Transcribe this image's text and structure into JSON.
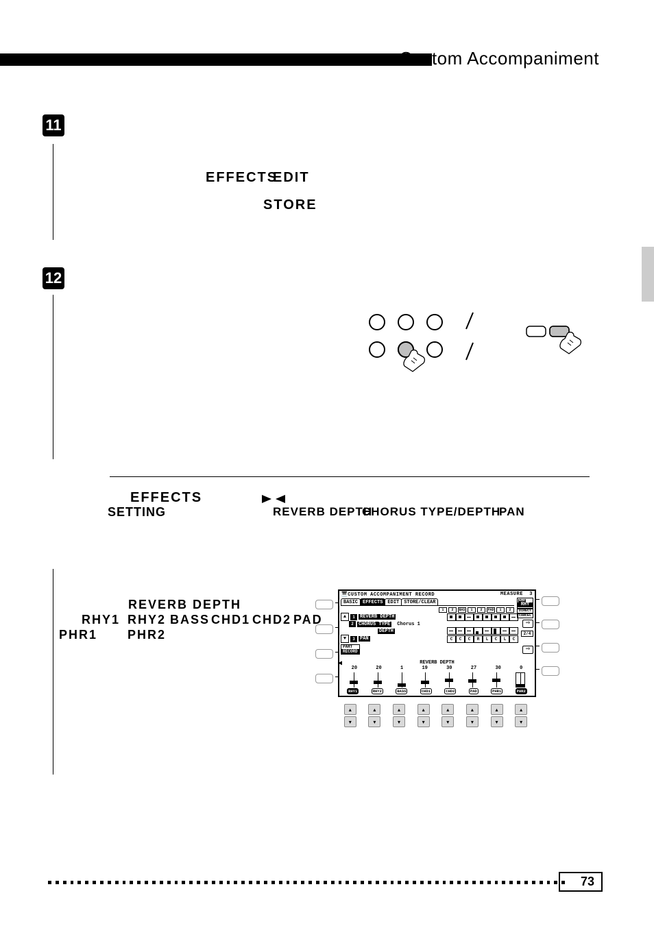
{
  "page": {
    "title": "Custom Accompaniment",
    "number": "73"
  },
  "steps": {
    "s11": "11",
    "s12": "12"
  },
  "words": {
    "effects": "EFFECTS",
    "edit": "EDIT",
    "store": "STORE",
    "setting": "SETTING",
    "reverb_depth": "REVERB DEPTH",
    "chorus_td": "CHORUS TYPE/DEPTH",
    "pan": "PAN"
  },
  "parts_line": {
    "rhy1": "RHY1",
    "rhy2": "RHY2",
    "bass": "BASS",
    "chd1": "CHD1",
    "chd2": "CHD2",
    "pad": "PAD",
    "phr1": "PHR1",
    "phr2": "PHR2"
  },
  "lcd": {
    "header_left": "CUSTOM ACCOMPANIMENT RECORD",
    "header_right_label": "MEASURE",
    "header_right_val": "3",
    "tabs": [
      "BASIC",
      "EFFECTS",
      "EDIT",
      "STORE/CLEAR"
    ],
    "active_tab": 1,
    "corner": {
      "top": "END",
      "mid": "RHY",
      "bot1": "DIRECT",
      "bot2": "CANCEL"
    },
    "head_cells": [
      "1",
      "2",
      "BAS",
      "1",
      "2",
      "PAD",
      "1",
      "2"
    ],
    "rows": [
      {
        "n": "1",
        "label": "REVERB DEPTH",
        "val": "",
        "cells": [
          "dot",
          "dot",
          "dash",
          "dot",
          "dot",
          "dot",
          "dot",
          "dash"
        ]
      },
      {
        "n": "2",
        "label": "CHORUS TYPE",
        "val": "Chorus 1",
        "cells": []
      },
      {
        "n": "",
        "label": "DEPTH",
        "val": "",
        "cells": [
          "dash",
          "dash",
          "dash",
          "b2",
          "dash",
          "b4",
          "dash",
          "dash"
        ]
      },
      {
        "n": "3",
        "label": "PAN",
        "val": "",
        "cells": [
          "C",
          "C",
          "C",
          "R",
          "L",
          "C",
          "L",
          "C"
        ]
      }
    ],
    "page_ind": "2/4",
    "part_btn": {
      "l1": "PART",
      "l2": "RECORD"
    },
    "section_title": "REVERB DEPTH",
    "values": [
      "20",
      "20",
      "1",
      "19",
      "30",
      "27",
      "30",
      "0"
    ],
    "slider_pos": [
      0.7,
      0.7,
      0.97,
      0.72,
      0.55,
      0.58,
      0.55,
      0.98
    ],
    "slider_outline": [
      false,
      false,
      false,
      false,
      false,
      false,
      false,
      true
    ],
    "part_names": [
      "RHY1",
      "RHY2",
      "BASS",
      "CHD1",
      "CHD2",
      "PAD",
      "PHR1",
      "PHR2"
    ],
    "part_inv": [
      true,
      false,
      false,
      false,
      false,
      false,
      false,
      true
    ]
  },
  "colors": {
    "black": "#000000",
    "white": "#ffffff",
    "grey_tab": "#cccccc",
    "btn_grey": "#d9d9d9",
    "btn_border": "#888888"
  }
}
